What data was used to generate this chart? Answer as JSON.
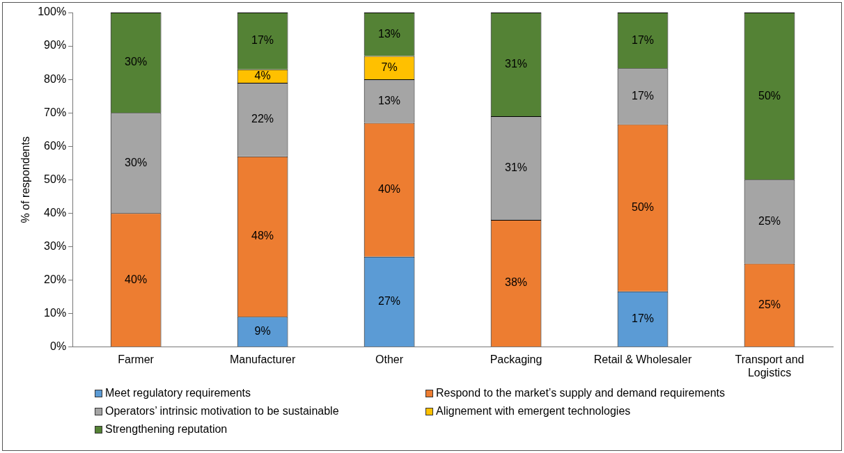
{
  "chart_data": {
    "type": "bar",
    "stacked": true,
    "ylabel": "% of respondents",
    "categories": [
      "Farmer",
      "Manufacturer",
      "Other",
      "Packaging",
      "Retail & Wholesaler",
      "Transport and Logistics"
    ],
    "series": [
      {
        "name": "Meet regulatory requirements",
        "color": "#5b9bd5",
        "values": [
          null,
          9,
          27,
          null,
          16.6,
          null
        ],
        "value_labels": [
          null,
          "9%",
          "27%",
          null,
          "17%",
          null
        ]
      },
      {
        "name": "Respond to the market’s supply and demand requirements",
        "color": "#ed7d31",
        "values": [
          40,
          48,
          40,
          38,
          50,
          25
        ],
        "value_labels": [
          "40%",
          "48%",
          "40%",
          "38%",
          "50%",
          "25%"
        ]
      },
      {
        "name": "Operators’ intrinsic motivation to be sustainable",
        "color": "#a5a5a5",
        "values": [
          30,
          22,
          13,
          31,
          16.7,
          25
        ],
        "value_labels": [
          "30%",
          "22%",
          "13%",
          "31%",
          "17%",
          "25%"
        ]
      },
      {
        "name": "Alignement with emergent technologies",
        "color": "#ffc000",
        "values": [
          null,
          4,
          7,
          null,
          null,
          null
        ],
        "value_labels": [
          null,
          "4%",
          "7%",
          null,
          null,
          null
        ]
      },
      {
        "name": "Strengthening reputation",
        "color": "#548235",
        "values": [
          30,
          17,
          13,
          31,
          16.7,
          50
        ],
        "value_labels": [
          "30%",
          "17%",
          "13%",
          "31%",
          "17%",
          "50%"
        ]
      }
    ],
    "ylim": [
      0,
      100
    ],
    "yticks": [
      {
        "value": 0,
        "label": "0%"
      },
      {
        "value": 10,
        "label": "10%"
      },
      {
        "value": 20,
        "label": "20%"
      },
      {
        "value": 30,
        "label": "30%"
      },
      {
        "value": 40,
        "label": "40%"
      },
      {
        "value": 50,
        "label": "50%"
      },
      {
        "value": 60,
        "label": "60%"
      },
      {
        "value": 70,
        "label": "70%"
      },
      {
        "value": 80,
        "label": "80%"
      },
      {
        "value": 90,
        "label": "90%"
      },
      {
        "value": 100,
        "label": "100%"
      }
    ],
    "grid": false,
    "legend": "bottom"
  }
}
